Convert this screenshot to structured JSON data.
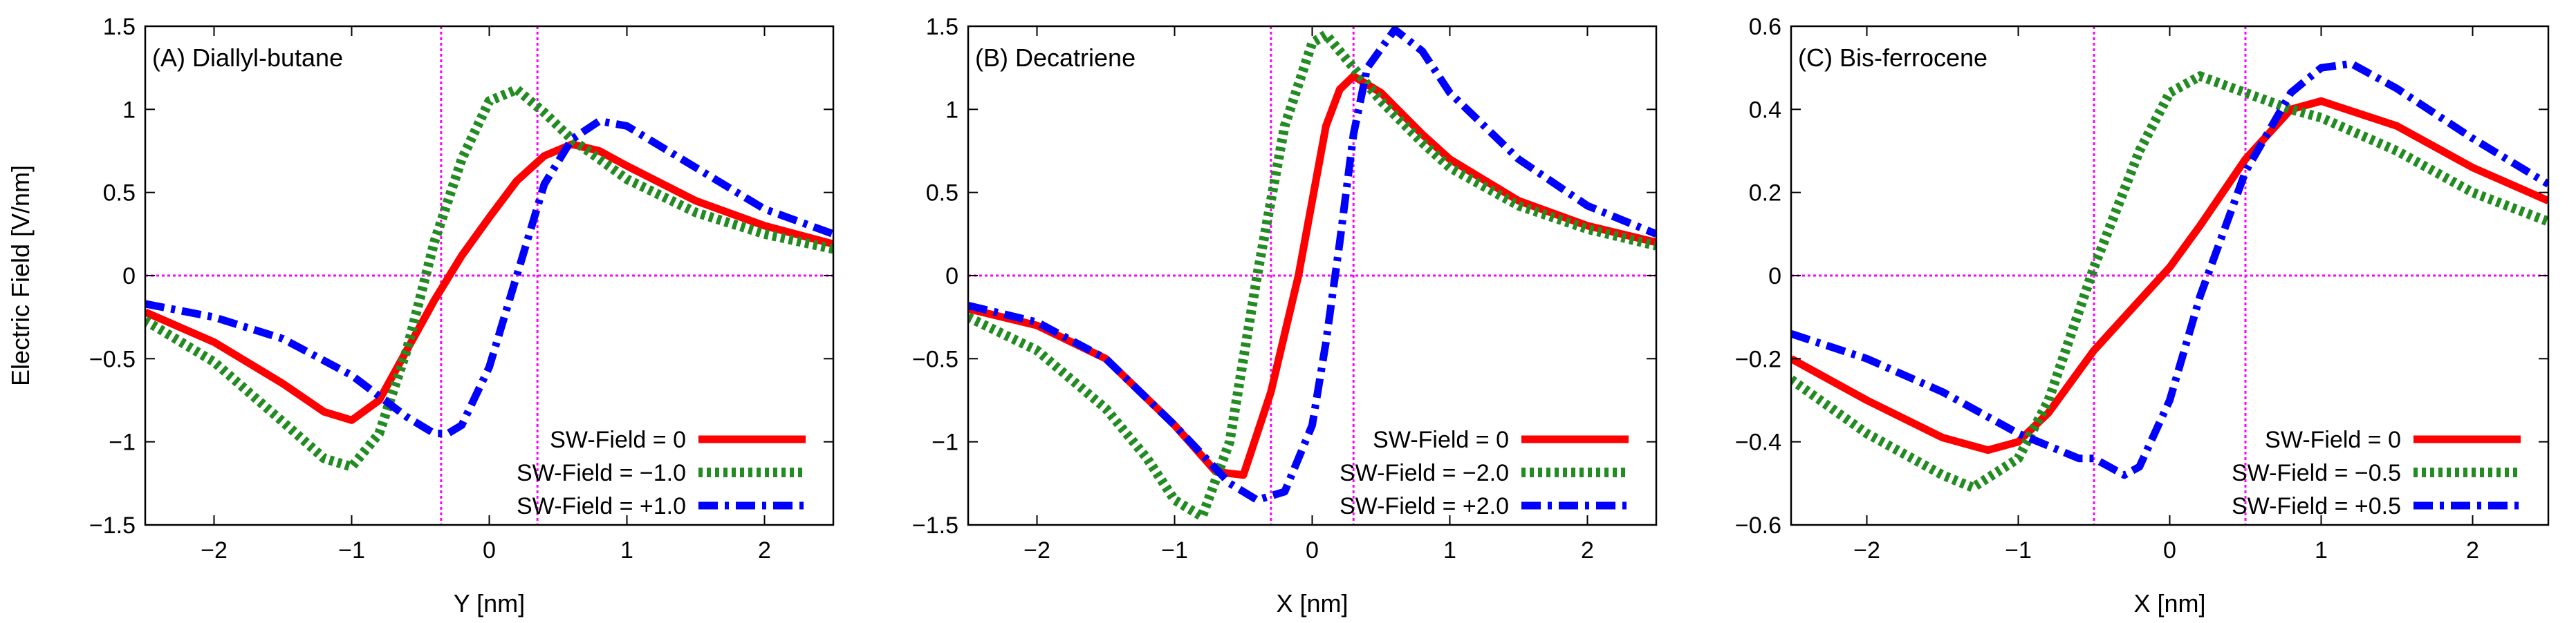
{
  "chart_data": [
    {
      "type": "line",
      "title": "(A) Diallyl-butane",
      "xlabel": "Y [nm]",
      "ylabel": "Electric Field [V/nm]",
      "xlim": [
        -2.5,
        2.5
      ],
      "ylim": [
        -1.5,
        1.5
      ],
      "xticks": [
        -2,
        -1,
        0,
        1,
        2
      ],
      "yticks": [
        -1.5,
        -1,
        -0.5,
        0,
        0.5,
        1,
        1.5
      ],
      "ytick_labels": [
        "-1.5",
        "-1",
        "-0.5",
        "0",
        "0.5",
        "1",
        "1.5"
      ],
      "vlines": [
        -0.35,
        0.35
      ],
      "hline": 0,
      "legend_position": "bottom-right",
      "series": [
        {
          "name": "SW-Field = 0",
          "color": "#ff0000",
          "dash": "solid",
          "x": [
            -2.5,
            -2,
            -1.5,
            -1.2,
            -1.0,
            -0.8,
            -0.6,
            -0.4,
            -0.2,
            0,
            0.2,
            0.4,
            0.6,
            0.8,
            1.0,
            1.5,
            2,
            2.5
          ],
          "y": [
            -0.22,
            -0.4,
            -0.65,
            -0.82,
            -0.87,
            -0.75,
            -0.45,
            -0.15,
            0.12,
            0.35,
            0.57,
            0.72,
            0.79,
            0.75,
            0.66,
            0.45,
            0.3,
            0.19
          ]
        },
        {
          "name": "SW-Field = −1.0",
          "color": "#228b22",
          "dash": "dotted",
          "x": [
            -2.5,
            -2,
            -1.5,
            -1.2,
            -1.0,
            -0.8,
            -0.6,
            -0.4,
            -0.2,
            0,
            0.2,
            0.4,
            0.6,
            0.8,
            1.0,
            1.5,
            2,
            2.5
          ],
          "y": [
            -0.27,
            -0.52,
            -0.88,
            -1.1,
            -1.15,
            -0.95,
            -0.45,
            0.2,
            0.7,
            1.05,
            1.12,
            0.98,
            0.82,
            0.7,
            0.58,
            0.38,
            0.25,
            0.16
          ]
        },
        {
          "name": "SW-Field = +1.0",
          "color": "#0000ff",
          "dash": "dashdot",
          "x": [
            -2.5,
            -2,
            -1.5,
            -1.0,
            -0.6,
            -0.4,
            -0.3,
            -0.2,
            0,
            0.2,
            0.4,
            0.6,
            0.8,
            1.0,
            1.5,
            2,
            2.5
          ],
          "y": [
            -0.17,
            -0.25,
            -0.38,
            -0.6,
            -0.85,
            -0.95,
            -0.95,
            -0.9,
            -0.55,
            0.0,
            0.55,
            0.82,
            0.93,
            0.9,
            0.65,
            0.4,
            0.25
          ]
        }
      ]
    },
    {
      "type": "line",
      "title": "(B) Decatriene",
      "xlabel": "X [nm]",
      "ylabel": "",
      "xlim": [
        -2.5,
        2.5
      ],
      "ylim": [
        -1.5,
        1.5
      ],
      "xticks": [
        -2,
        -1,
        0,
        1,
        2
      ],
      "yticks": [
        -1.5,
        -1,
        -0.5,
        0,
        0.5,
        1,
        1.5
      ],
      "ytick_labels": [
        "-1.5",
        "-1",
        "-0.5",
        "0",
        "0.5",
        "1",
        "1.5"
      ],
      "vlines": [
        -0.3,
        0.3
      ],
      "hline": 0,
      "legend_position": "bottom-right",
      "series": [
        {
          "name": "SW-Field = 0",
          "color": "#ff0000",
          "dash": "solid",
          "x": [
            -2.5,
            -2,
            -1.5,
            -1.0,
            -0.7,
            -0.5,
            -0.3,
            -0.1,
            0,
            0.1,
            0.2,
            0.3,
            0.5,
            0.8,
            1.0,
            1.5,
            2,
            2.5
          ],
          "y": [
            -0.2,
            -0.3,
            -0.5,
            -0.9,
            -1.18,
            -1.2,
            -0.7,
            0.0,
            0.45,
            0.9,
            1.12,
            1.2,
            1.1,
            0.85,
            0.7,
            0.45,
            0.3,
            0.2
          ]
        },
        {
          "name": "SW-Field = −2.0",
          "color": "#228b22",
          "dash": "dotted",
          "x": [
            -2.5,
            -2,
            -1.5,
            -1.2,
            -1.0,
            -0.8,
            -0.6,
            -0.4,
            -0.2,
            0,
            0.1,
            0.3,
            0.5,
            0.8,
            1.0,
            1.5,
            2,
            2.5
          ],
          "y": [
            -0.25,
            -0.45,
            -0.8,
            -1.1,
            -1.35,
            -1.45,
            -1.0,
            0.0,
            0.9,
            1.4,
            1.45,
            1.25,
            1.05,
            0.8,
            0.65,
            0.42,
            0.28,
            0.18
          ]
        },
        {
          "name": "SW-Field = +2.0",
          "color": "#0000ff",
          "dash": "dashdot",
          "x": [
            -2.5,
            -2,
            -1.5,
            -1.0,
            -0.6,
            -0.4,
            -0.2,
            0,
            0.1,
            0.2,
            0.3,
            0.4,
            0.6,
            0.8,
            1.0,
            1.5,
            2,
            2.5
          ],
          "y": [
            -0.18,
            -0.28,
            -0.5,
            -0.9,
            -1.25,
            -1.35,
            -1.3,
            -0.9,
            -0.4,
            0.2,
            0.85,
            1.25,
            1.48,
            1.35,
            1.1,
            0.7,
            0.42,
            0.25
          ]
        }
      ]
    },
    {
      "type": "line",
      "title": "(C) Bis-ferrocene",
      "xlabel": "X [nm]",
      "ylabel": "",
      "xlim": [
        -2.5,
        2.5
      ],
      "ylim": [
        -0.6,
        0.6
      ],
      "xticks": [
        -2,
        -1,
        0,
        1,
        2
      ],
      "yticks": [
        -0.6,
        -0.4,
        -0.2,
        0,
        0.2,
        0.4,
        0.6
      ],
      "ytick_labels": [
        "-0.6",
        "-0.4",
        "-0.2",
        "0",
        "0.2",
        "0.4",
        "0.6"
      ],
      "vlines": [
        -0.5,
        0.5
      ],
      "hline": 0,
      "legend_position": "bottom-right",
      "series": [
        {
          "name": "SW-Field = 0",
          "color": "#ff0000",
          "dash": "solid",
          "x": [
            -2.5,
            -2,
            -1.5,
            -1.2,
            -1.0,
            -0.8,
            -0.5,
            -0.2,
            0,
            0.2,
            0.5,
            0.8,
            1.0,
            1.5,
            2,
            2.5
          ],
          "y": [
            -0.2,
            -0.3,
            -0.39,
            -0.42,
            -0.4,
            -0.33,
            -0.18,
            -0.06,
            0.02,
            0.12,
            0.28,
            0.4,
            0.42,
            0.36,
            0.26,
            0.18
          ]
        },
        {
          "name": "SW-Field = −0.5",
          "color": "#228b22",
          "dash": "dotted",
          "x": [
            -2.5,
            -2,
            -1.5,
            -1.3,
            -1.0,
            -0.8,
            -0.5,
            -0.2,
            0,
            0.2,
            0.5,
            0.8,
            1.0,
            1.5,
            2,
            2.5
          ],
          "y": [
            -0.25,
            -0.38,
            -0.48,
            -0.51,
            -0.44,
            -0.3,
            0.02,
            0.3,
            0.44,
            0.48,
            0.44,
            0.4,
            0.38,
            0.3,
            0.2,
            0.13
          ]
        },
        {
          "name": "SW-Field = +0.5",
          "color": "#0000ff",
          "dash": "dashdot",
          "x": [
            -2.5,
            -2,
            -1.5,
            -1.0,
            -0.6,
            -0.5,
            -0.3,
            -0.2,
            0,
            0.2,
            0.5,
            0.8,
            1.0,
            1.2,
            1.5,
            2,
            2.5
          ],
          "y": [
            -0.14,
            -0.2,
            -0.28,
            -0.38,
            -0.44,
            -0.44,
            -0.48,
            -0.46,
            -0.3,
            -0.05,
            0.25,
            0.44,
            0.5,
            0.51,
            0.45,
            0.33,
            0.22
          ]
        }
      ]
    }
  ]
}
